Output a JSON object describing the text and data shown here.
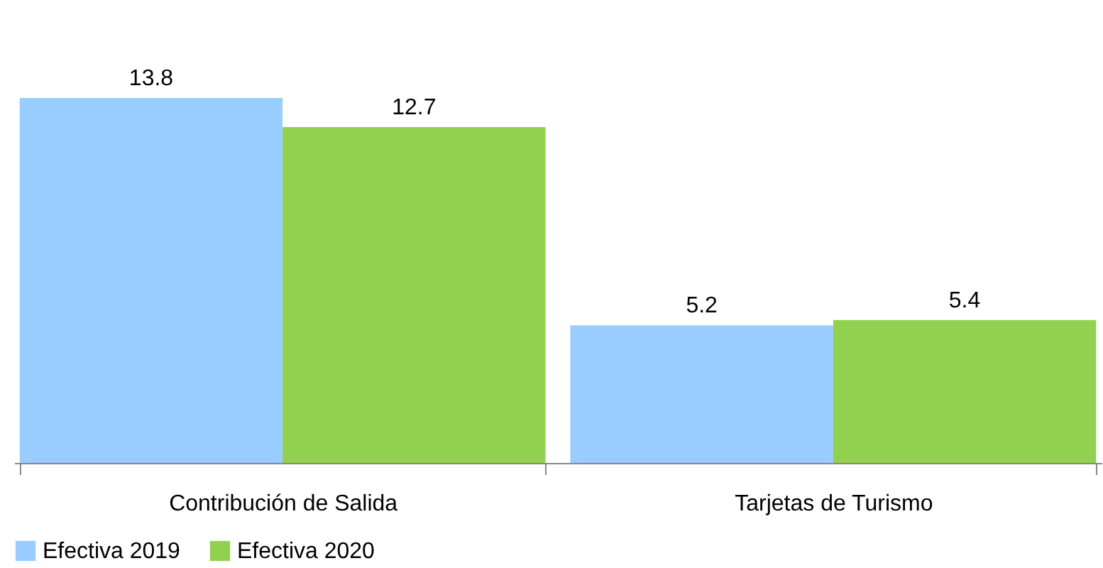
{
  "chart_data": {
    "type": "bar",
    "categories": [
      "Contribución de Salida",
      "Tarjetas de Turismo"
    ],
    "series": [
      {
        "name": "Efectiva 2019",
        "color": "#99ccff",
        "values": [
          13.8,
          5.2
        ]
      },
      {
        "name": "Efectiva 2020",
        "color": "#92d050",
        "values": [
          12.7,
          5.4
        ]
      }
    ],
    "data_labels": true,
    "legend": "bottom",
    "grid": false,
    "tick_labels": "x"
  }
}
